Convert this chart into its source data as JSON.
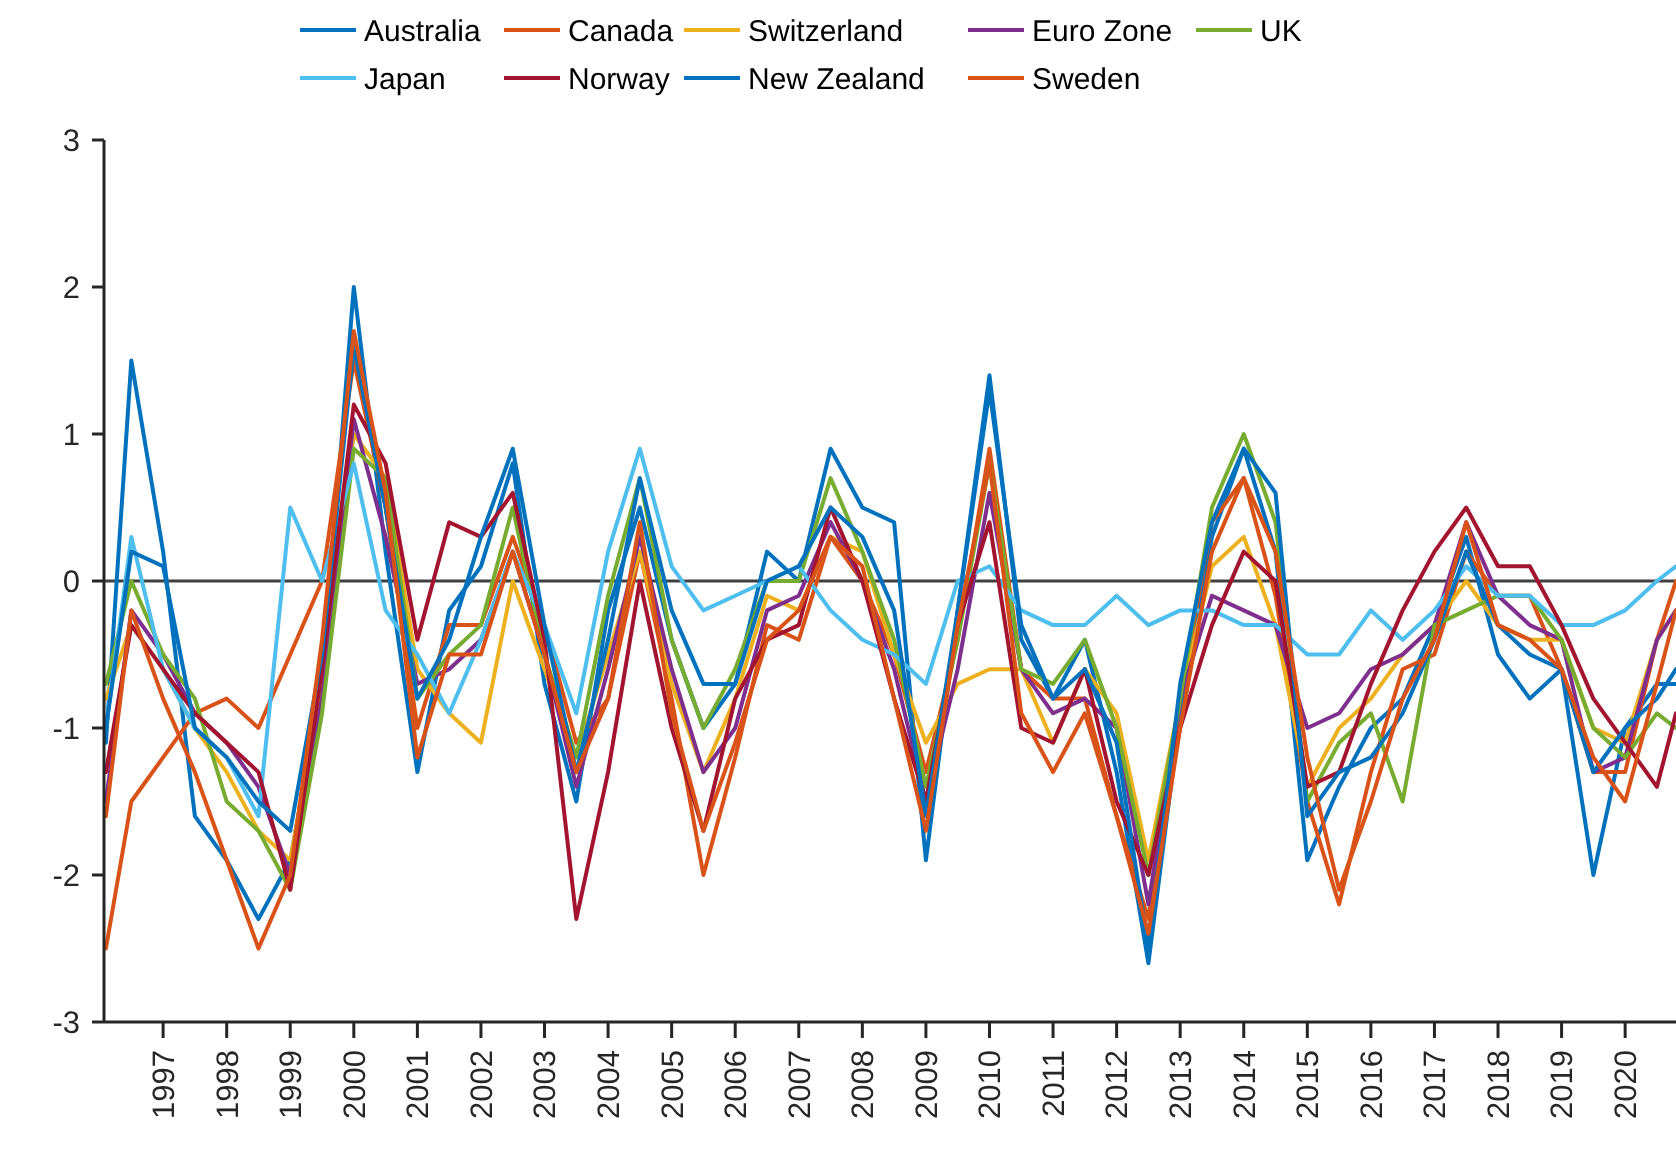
{
  "chart_data": {
    "type": "line",
    "x": [
      1996.1,
      1996.5,
      1997,
      1997.5,
      1998,
      1998.5,
      1999,
      1999.5,
      2000,
      2000.5,
      2001,
      2001.5,
      2002,
      2002.5,
      2003,
      2003.5,
      2004,
      2004.5,
      2005,
      2005.5,
      2006,
      2006.5,
      2007,
      2007.5,
      2008,
      2008.5,
      2009,
      2009.5,
      2010,
      2010.5,
      2011,
      2011.5,
      2012,
      2012.5,
      2013,
      2013.5,
      2014,
      2014.5,
      2015,
      2015.5,
      2016,
      2016.5,
      2017,
      2017.5,
      2018,
      2018.5,
      2019,
      2019.5,
      2020,
      2020.5,
      2020.8
    ],
    "xlim": [
      1996.07,
      2020.8
    ],
    "xticks": [
      1997,
      1998,
      1999,
      2000,
      2001,
      2002,
      2003,
      2004,
      2005,
      2006,
      2007,
      2008,
      2009,
      2010,
      2011,
      2012,
      2013,
      2014,
      2015,
      2016,
      2017,
      2018,
      2019,
      2020
    ],
    "ylim": [
      -3,
      3
    ],
    "yticks": [
      -3,
      -2,
      -1,
      0,
      1,
      2,
      3
    ],
    "legend": "top",
    "ref_lines": [
      {
        "axis": "y",
        "value": 0,
        "color": "#404040"
      }
    ],
    "series": [
      {
        "name": "Australia",
        "color": "#0072bd",
        "values": [
          -1.1,
          1.5,
          0.2,
          -1.6,
          -1.9,
          -2.3,
          -1.9,
          -0.7,
          2.0,
          0.2,
          -1.3,
          -0.2,
          0.1,
          0.8,
          -0.7,
          -1.5,
          -0.2,
          0.5,
          -0.4,
          -1.0,
          -0.7,
          0.2,
          0.0,
          0.9,
          0.5,
          0.4,
          -1.9,
          -0.2,
          1.4,
          -0.4,
          -0.8,
          -0.4,
          -1.3,
          -2.6,
          -0.9,
          0.3,
          0.9,
          0.2,
          -1.9,
          -1.4,
          -1.0,
          -0.8,
          -0.3,
          0.3,
          -0.5,
          -0.8,
          -0.6,
          -2.0,
          -1.0,
          -0.7,
          -0.7
        ]
      },
      {
        "name": "Canada",
        "color": "#d95319",
        "values": [
          -2.5,
          -1.5,
          -1.2,
          -0.9,
          -0.8,
          -1.0,
          -0.5,
          0.0,
          1.5,
          0.5,
          -1.0,
          -0.3,
          -0.3,
          0.3,
          -0.3,
          -1.1,
          -0.8,
          0.2,
          -0.8,
          -2.0,
          -1.2,
          -0.3,
          -0.4,
          0.3,
          0.0,
          -0.5,
          -1.3,
          -0.4,
          0.9,
          -0.6,
          -0.8,
          -0.8,
          -1.6,
          -2.3,
          -0.8,
          0.4,
          0.7,
          -0.1,
          -1.5,
          -2.2,
          -1.3,
          -0.6,
          -0.5,
          0.2,
          -0.1,
          -0.1,
          -0.6,
          -1.3,
          -1.3,
          -0.4,
          0.0
        ]
      },
      {
        "name": "Switzerland",
        "color": "#edb120",
        "values": [
          -0.8,
          -0.3,
          -0.6,
          -1.0,
          -1.3,
          -1.7,
          -1.9,
          -0.7,
          1.0,
          0.7,
          -0.6,
          -0.9,
          -1.1,
          0.0,
          -0.6,
          -1.2,
          -0.5,
          0.2,
          -0.7,
          -1.3,
          -0.8,
          -0.1,
          -0.2,
          0.3,
          0.2,
          -0.5,
          -1.1,
          -0.7,
          -0.6,
          -0.6,
          -1.1,
          -0.6,
          -0.9,
          -1.9,
          -0.8,
          0.1,
          0.3,
          -0.3,
          -1.4,
          -1.0,
          -0.8,
          -0.5,
          -0.3,
          0.0,
          -0.3,
          -0.4,
          -0.4,
          -1.0,
          -1.1,
          -0.4,
          -0.2
        ]
      },
      {
        "name": "Euro Zone",
        "color": "#7e2f8e",
        "values": [
          -1.5,
          -0.2,
          -0.5,
          -0.9,
          -1.1,
          -1.4,
          -2.0,
          -0.8,
          1.1,
          0.3,
          -0.7,
          -0.6,
          -0.4,
          0.2,
          -0.5,
          -1.4,
          -0.6,
          0.3,
          -0.6,
          -1.3,
          -1.0,
          -0.2,
          -0.1,
          0.4,
          0.0,
          -0.6,
          -1.5,
          -0.6,
          0.6,
          -0.6,
          -0.9,
          -0.8,
          -1.0,
          -2.2,
          -0.8,
          -0.1,
          -0.2,
          -0.3,
          -1.0,
          -0.9,
          -0.6,
          -0.5,
          -0.3,
          0.4,
          -0.1,
          -0.3,
          -0.4,
          -1.3,
          -1.2,
          -0.4,
          -0.2
        ]
      },
      {
        "name": "UK",
        "color": "#77ac30",
        "values": [
          -0.7,
          0.0,
          -0.5,
          -0.8,
          -1.5,
          -1.7,
          -2.1,
          -0.9,
          0.9,
          0.7,
          -0.8,
          -0.5,
          -0.3,
          0.5,
          -0.5,
          -1.2,
          -0.1,
          0.7,
          -0.4,
          -1.0,
          -0.6,
          0.0,
          0.0,
          0.7,
          0.2,
          -0.4,
          -1.4,
          -0.4,
          0.8,
          -0.6,
          -0.7,
          -0.4,
          -1.0,
          -2.0,
          -0.8,
          0.5,
          1.0,
          0.4,
          -1.5,
          -1.1,
          -0.9,
          -1.5,
          -0.3,
          -0.2,
          -0.1,
          -0.1,
          -0.4,
          -1.0,
          -1.2,
          -0.9,
          -1.0
        ]
      },
      {
        "name": "Japan",
        "color": "#4dbeee",
        "values": [
          -1.0,
          0.3,
          -0.6,
          -1.0,
          -1.2,
          -1.6,
          0.5,
          0.0,
          0.8,
          -0.2,
          -0.5,
          -0.9,
          -0.4,
          0.2,
          -0.3,
          -0.9,
          0.2,
          0.9,
          0.1,
          -0.2,
          -0.1,
          0.0,
          0.1,
          -0.2,
          -0.4,
          -0.5,
          -0.7,
          0.0,
          0.1,
          -0.2,
          -0.3,
          -0.3,
          -0.1,
          -0.3,
          -0.2,
          -0.2,
          -0.3,
          -0.3,
          -0.5,
          -0.5,
          -0.2,
          -0.4,
          -0.2,
          0.1,
          -0.1,
          -0.1,
          -0.3,
          -0.3,
          -0.2,
          0.0,
          0.1
        ]
      },
      {
        "name": "Norway",
        "color": "#a2142f",
        "values": [
          -1.3,
          -0.3,
          -0.6,
          -0.9,
          -1.1,
          -1.3,
          -2.1,
          -0.6,
          1.2,
          0.8,
          -0.4,
          0.4,
          0.3,
          0.6,
          -0.4,
          -2.3,
          -1.3,
          0.0,
          -1.0,
          -1.7,
          -0.8,
          -0.4,
          -0.3,
          0.5,
          0.0,
          -0.8,
          -1.5,
          -0.3,
          0.4,
          -1.0,
          -1.1,
          -0.6,
          -1.5,
          -2.0,
          -1.0,
          -0.3,
          0.2,
          0.0,
          -1.4,
          -1.3,
          -0.7,
          -0.2,
          0.2,
          0.5,
          0.1,
          0.1,
          -0.3,
          -0.8,
          -1.1,
          -1.4,
          -0.9
        ]
      },
      {
        "name": "New Zealand",
        "color": "#0072bd",
        "values": [
          -1.0,
          0.2,
          0.1,
          -1.0,
          -1.2,
          -1.5,
          -1.7,
          -0.5,
          1.6,
          0.5,
          -0.8,
          -0.4,
          0.3,
          0.9,
          -0.3,
          -1.3,
          -0.4,
          0.7,
          -0.2,
          -0.7,
          -0.7,
          0.0,
          0.1,
          0.5,
          0.3,
          -0.2,
          -1.6,
          -0.2,
          1.3,
          -0.3,
          -0.8,
          -0.6,
          -1.1,
          -2.5,
          -0.7,
          0.4,
          0.9,
          0.6,
          -1.6,
          -1.3,
          -1.2,
          -0.9,
          -0.4,
          0.2,
          -0.3,
          -0.5,
          -0.6,
          -1.3,
          -1.0,
          -0.8,
          -0.6
        ]
      },
      {
        "name": "Sweden",
        "color": "#d95319",
        "values": [
          -1.6,
          -0.2,
          -0.8,
          -1.3,
          -1.9,
          -2.5,
          -2.0,
          -0.4,
          1.7,
          0.6,
          -1.2,
          -0.5,
          -0.5,
          0.2,
          -0.5,
          -1.3,
          -0.8,
          0.4,
          -0.9,
          -1.7,
          -1.1,
          -0.4,
          -0.2,
          0.3,
          0.1,
          -0.8,
          -1.7,
          -0.3,
          0.8,
          -0.9,
          -1.3,
          -0.9,
          -1.6,
          -2.4,
          -1.0,
          0.2,
          0.7,
          0.2,
          -1.2,
          -2.1,
          -1.5,
          -0.8,
          -0.4,
          0.4,
          -0.3,
          -0.4,
          -0.6,
          -1.2,
          -1.5,
          -0.7,
          -0.2
        ]
      }
    ]
  }
}
